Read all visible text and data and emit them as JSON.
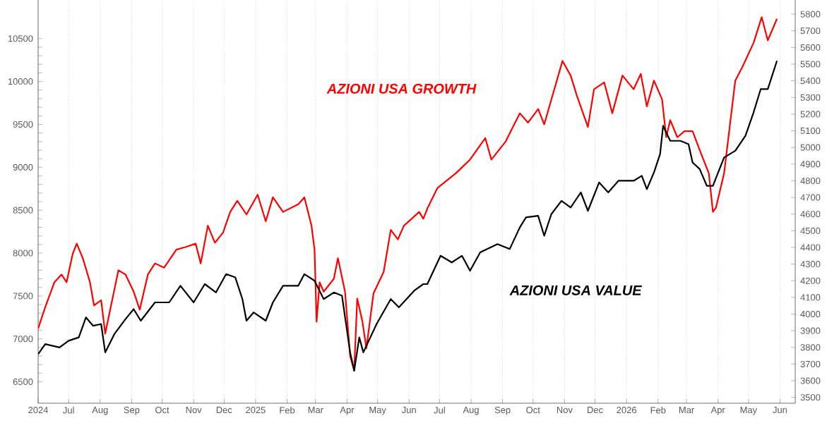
{
  "chart_data": {
    "type": "line",
    "xlim": [
      "2024-06-01",
      "2026-06-16"
    ],
    "xticks": [
      {
        "value": "2024-06",
        "label": "2024"
      },
      {
        "value": "2024-07",
        "label": "Jul"
      },
      {
        "value": "2024-08",
        "label": "Aug"
      },
      {
        "value": "2024-09",
        "label": "Sep"
      },
      {
        "value": "2024-10",
        "label": "Oct"
      },
      {
        "value": "2024-11",
        "label": "Nov"
      },
      {
        "value": "2024-12",
        "label": "Dec"
      },
      {
        "value": "2025-01",
        "label": "2025"
      },
      {
        "value": "2025-02",
        "label": "Feb"
      },
      {
        "value": "2025-03",
        "label": "Mar"
      },
      {
        "value": "2025-04",
        "label": "Apr"
      },
      {
        "value": "2025-05",
        "label": "May"
      },
      {
        "value": "2025-06",
        "label": "Jun"
      },
      {
        "value": "2025-07",
        "label": "Jul"
      },
      {
        "value": "2025-08",
        "label": "Aug"
      },
      {
        "value": "2025-09",
        "label": "Sep"
      },
      {
        "value": "2025-10",
        "label": "Oct"
      },
      {
        "value": "2025-11",
        "label": "Nov"
      },
      {
        "value": "2025-12",
        "label": "Dec"
      },
      {
        "value": "2026-01",
        "label": "2026"
      },
      {
        "value": "2026-02",
        "label": "Feb"
      },
      {
        "value": "2026-03",
        "label": "Mar"
      },
      {
        "value": "2026-04",
        "label": "Apr"
      },
      {
        "value": "2026-05",
        "label": "May"
      },
      {
        "value": "2026-06",
        "label": "Jun"
      }
    ],
    "ylim": [
      6250,
      10950
    ],
    "yticks": [
      6500,
      7000,
      7500,
      8000,
      8500,
      9000,
      9500,
      10000,
      10500
    ],
    "y2lim": [
      3465,
      5885
    ],
    "y2ticks": [
      3500,
      3600,
      3700,
      3800,
      3900,
      4000,
      4100,
      4200,
      4300,
      4400,
      4500,
      4600,
      4700,
      4800,
      4900,
      5000,
      5100,
      5200,
      5300,
      5400,
      5500,
      5600,
      5700,
      5800
    ],
    "grid": "x",
    "legend": false,
    "marker": "none",
    "series": [
      {
        "name": "AZIONI USA GROWTH",
        "color": "#ff0000",
        "x": [
          "2024-06-01",
          "2024-06-08",
          "2024-06-17",
          "2024-06-24",
          "2024-06-29",
          "2024-07-05",
          "2024-07-09",
          "2024-07-15",
          "2024-07-22",
          "2024-07-26",
          "2024-08-02",
          "2024-08-06",
          "2024-08-10",
          "2024-08-19",
          "2024-08-26",
          "2024-09-03",
          "2024-09-09",
          "2024-09-17",
          "2024-09-24",
          "2024-10-03",
          "2024-10-15",
          "2024-10-24",
          "2024-11-03",
          "2024-11-08",
          "2024-11-15",
          "2024-11-22",
          "2024-11-30",
          "2024-12-07",
          "2024-12-14",
          "2024-12-23",
          "2025-01-03",
          "2025-01-11",
          "2025-01-18",
          "2025-01-28",
          "2025-02-12",
          "2025-02-18",
          "2025-02-25",
          "2025-02-28",
          "2025-03-02",
          "2025-03-05",
          "2025-03-09",
          "2025-03-19",
          "2025-03-23",
          "2025-03-30",
          "2025-04-04",
          "2025-04-08",
          "2025-04-11",
          "2025-04-16",
          "2025-04-20",
          "2025-04-27",
          "2025-05-07",
          "2025-05-14",
          "2025-05-21",
          "2025-05-27",
          "2025-06-11",
          "2025-06-15",
          "2025-06-19",
          "2025-06-29",
          "2025-07-17",
          "2025-07-31",
          "2025-08-15",
          "2025-08-21",
          "2025-09-04",
          "2025-09-18",
          "2025-09-26",
          "2025-10-06",
          "2025-10-12",
          "2025-10-19",
          "2025-10-30",
          "2025-11-07",
          "2025-11-13",
          "2025-11-24",
          "2025-11-30",
          "2025-12-10",
          "2025-12-18",
          "2025-12-28",
          "2026-01-08",
          "2026-01-15",
          "2026-01-21",
          "2026-01-28",
          "2026-02-05",
          "2026-02-09",
          "2026-02-13",
          "2026-02-20",
          "2026-02-27",
          "2026-03-07",
          "2026-03-16",
          "2026-03-23",
          "2026-03-27",
          "2026-03-30",
          "2026-04-07",
          "2026-04-18",
          "2026-04-25",
          "2026-05-06",
          "2026-05-14",
          "2026-05-20",
          "2026-05-29"
        ],
        "values": [
          7120,
          7370,
          7660,
          7750,
          7660,
          7990,
          8110,
          7940,
          7660,
          7390,
          7450,
          7060,
          7290,
          7800,
          7750,
          7550,
          7340,
          7750,
          7880,
          7830,
          8040,
          8070,
          8110,
          7880,
          8320,
          8120,
          8240,
          8480,
          8610,
          8450,
          8680,
          8370,
          8650,
          8480,
          8570,
          8650,
          8320,
          8040,
          7200,
          7660,
          7550,
          7700,
          7940,
          7550,
          6800,
          6630,
          7470,
          7210,
          6890,
          7530,
          7780,
          8270,
          8160,
          8320,
          8480,
          8400,
          8520,
          8760,
          8930,
          9090,
          9340,
          9090,
          9300,
          9630,
          9520,
          9680,
          9500,
          9790,
          10240,
          10070,
          9840,
          9470,
          9910,
          9990,
          9630,
          10070,
          9910,
          10090,
          9710,
          10010,
          9790,
          9350,
          9550,
          9350,
          9420,
          9420,
          9140,
          8930,
          8480,
          8530,
          8930,
          10010,
          10170,
          10450,
          10750,
          10480,
          10730
        ]
      },
      {
        "name": "AZIONI USA VALUE",
        "color": "#000000",
        "axis": "y2",
        "x": [
          "2024-06-01",
          "2024-06-08",
          "2024-06-22",
          "2024-07-01",
          "2024-07-11",
          "2024-07-18",
          "2024-07-25",
          "2024-08-02",
          "2024-08-06",
          "2024-08-15",
          "2024-08-26",
          "2024-09-03",
          "2024-09-10",
          "2024-09-24",
          "2024-10-08",
          "2024-10-19",
          "2024-11-01",
          "2024-11-12",
          "2024-11-23",
          "2024-12-03",
          "2024-12-12",
          "2024-12-19",
          "2024-12-23",
          "2024-12-30",
          "2025-01-11",
          "2025-01-18",
          "2025-01-28",
          "2025-02-12",
          "2025-02-18",
          "2025-02-28",
          "2025-03-09",
          "2025-03-19",
          "2025-03-27",
          "2025-04-04",
          "2025-04-08",
          "2025-04-13",
          "2025-04-17",
          "2025-04-30",
          "2025-05-14",
          "2025-05-22",
          "2025-06-06",
          "2025-06-15",
          "2025-06-19",
          "2025-07-02",
          "2025-07-13",
          "2025-07-23",
          "2025-07-31",
          "2025-08-10",
          "2025-08-27",
          "2025-09-08",
          "2025-09-18",
          "2025-09-24",
          "2025-10-06",
          "2025-10-12",
          "2025-10-19",
          "2025-10-29",
          "2025-11-07",
          "2025-11-17",
          "2025-11-24",
          "2025-12-05",
          "2025-12-14",
          "2025-12-24",
          "2026-01-08",
          "2026-01-16",
          "2026-01-21",
          "2026-01-28",
          "2026-02-03",
          "2026-02-06",
          "2026-02-13",
          "2026-02-23",
          "2026-03-03",
          "2026-03-07",
          "2026-03-14",
          "2026-03-21",
          "2026-03-27",
          "2026-04-07",
          "2026-04-18",
          "2026-04-28",
          "2026-05-06",
          "2026-05-13",
          "2026-05-20",
          "2026-05-29"
        ],
        "values": [
          3760,
          3820,
          3800,
          3840,
          3860,
          3980,
          3930,
          3940,
          3770,
          3880,
          3970,
          4030,
          3960,
          4070,
          4070,
          4170,
          4070,
          4180,
          4130,
          4240,
          4220,
          4090,
          3960,
          4010,
          3960,
          4070,
          4170,
          4170,
          4240,
          4200,
          4090,
          4130,
          4110,
          3770,
          3660,
          3860,
          3770,
          3940,
          4090,
          4040,
          4140,
          4180,
          4180,
          4350,
          4310,
          4350,
          4260,
          4370,
          4420,
          4390,
          4520,
          4580,
          4590,
          4470,
          4600,
          4680,
          4640,
          4730,
          4620,
          4790,
          4730,
          4800,
          4800,
          4830,
          4750,
          4850,
          4960,
          5130,
          5040,
          5040,
          5020,
          4910,
          4870,
          4770,
          4770,
          4940,
          4980,
          5070,
          5210,
          5350,
          5350,
          5520
        ]
      }
    ]
  }
}
